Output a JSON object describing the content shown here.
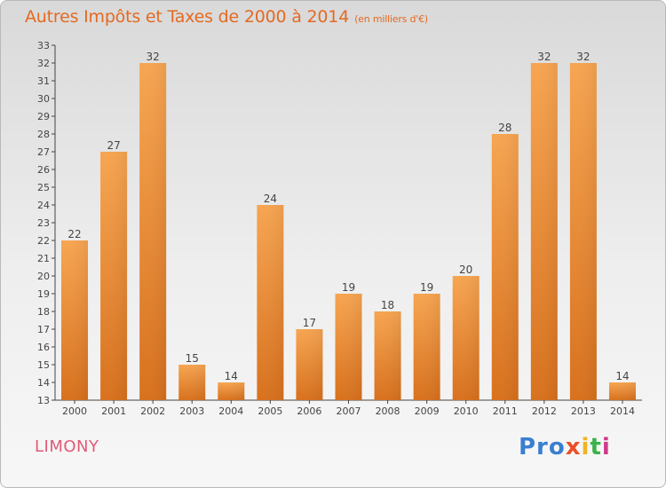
{
  "chart_data": {
    "type": "bar",
    "title": "Autres Impôts et Taxes de 2000 à 2014",
    "subtitle": "(en milliers d'€)",
    "categories": [
      "2000",
      "2001",
      "2002",
      "2003",
      "2004",
      "2005",
      "2006",
      "2007",
      "2008",
      "2009",
      "2010",
      "2011",
      "2012",
      "2013",
      "2014"
    ],
    "values": [
      22,
      27,
      32,
      15,
      14,
      24,
      17,
      19,
      18,
      19,
      20,
      28,
      32,
      32,
      14
    ],
    "ylim": [
      13,
      33
    ],
    "yticks": [
      13,
      14,
      15,
      16,
      17,
      18,
      19,
      20,
      21,
      22,
      23,
      24,
      25,
      26,
      27,
      28,
      29,
      30,
      31,
      32,
      33
    ],
    "grid": false,
    "colors": {
      "bar_light": "#f7a551",
      "bar_dark": "#d8711d",
      "label": "#444444",
      "axis": "#444444"
    }
  },
  "footer": {
    "place": "LIMONY",
    "logo": [
      "Pro",
      "x",
      "i",
      "t",
      "i"
    ]
  }
}
